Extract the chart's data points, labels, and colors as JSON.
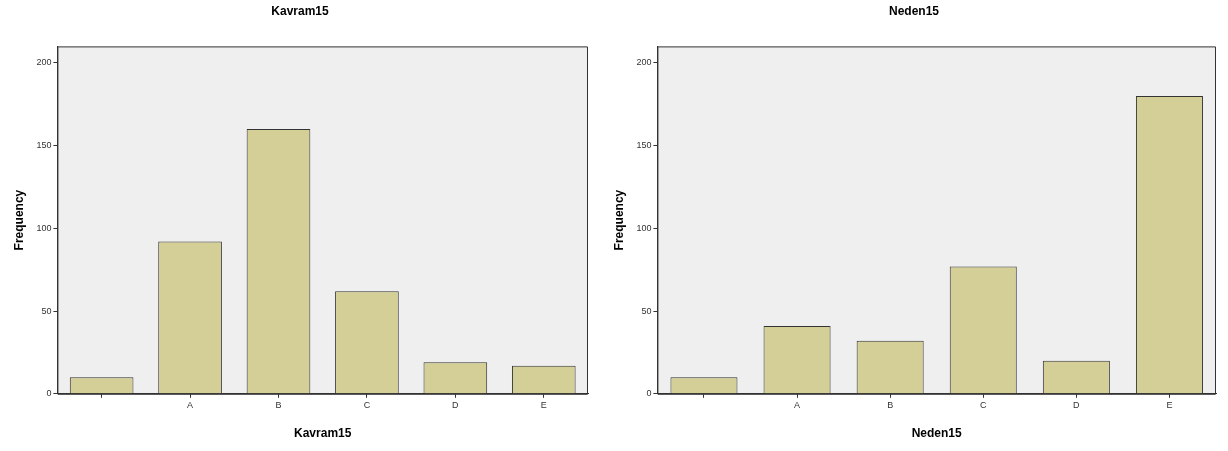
{
  "chart_data": [
    {
      "type": "bar",
      "title": "Kavram15",
      "xlabel": "Kavram15",
      "ylabel": "Frequency",
      "categories": [
        null,
        "A",
        "B",
        "C",
        "D",
        "E"
      ],
      "values": [
        10,
        92,
        160,
        62,
        19,
        17
      ],
      "color": "#d4cf97",
      "ylim": [
        0,
        210
      ],
      "yticks": [
        0,
        50,
        100,
        150,
        200
      ],
      "grid": false,
      "legend": false
    },
    {
      "type": "bar",
      "title": "Neden15",
      "xlabel": "Neden15",
      "ylabel": "Frequency",
      "categories": [
        null,
        "A",
        "B",
        "C",
        "D",
        "E"
      ],
      "values": [
        10,
        41,
        32,
        77,
        20,
        180
      ],
      "color": "#d4cf97",
      "ylim": [
        0,
        210
      ],
      "yticks": [
        0,
        50,
        100,
        150,
        200
      ],
      "grid": false,
      "legend": false
    }
  ]
}
